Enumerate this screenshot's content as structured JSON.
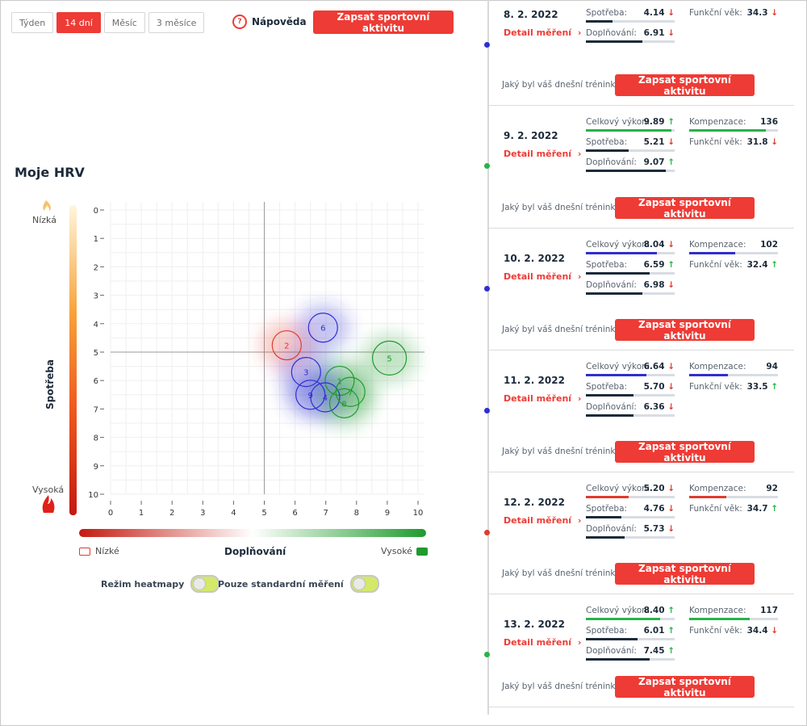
{
  "tabs": [
    {
      "label": "Týden",
      "active": false
    },
    {
      "label": "14 dní",
      "active": true
    },
    {
      "label": "Měsíc",
      "active": false
    },
    {
      "label": "3 měsíce",
      "active": false
    }
  ],
  "help": {
    "icon": "?",
    "label": "Nápověda"
  },
  "top_button": "Zapsat sportovní aktivitu",
  "chart_title": "Moje HRV",
  "chart": {
    "y_axis_title": "Spotřeba",
    "y_top_label": "Nízká",
    "y_bottom_label": "Vysoká",
    "x_axis_title": "Doplňování",
    "x_left_label": "Nízké",
    "x_right_label": "Vysoké",
    "colors": {
      "red": "#e03b2e",
      "green": "#1f9a2d",
      "blue": "#2e2fd0"
    }
  },
  "chart_data": {
    "type": "scatter",
    "xlabel": "Doplňování",
    "ylabel": "Spotřeba",
    "xlim": [
      0,
      10
    ],
    "ylim": [
      0,
      10
    ],
    "y_inverted": true,
    "x_ticks": [
      0,
      1,
      2,
      3,
      4,
      5,
      6,
      7,
      8,
      9,
      10
    ],
    "y_ticks": [
      0,
      1,
      2,
      3,
      4,
      5,
      6,
      7,
      8,
      9,
      10
    ],
    "reference_lines": {
      "x": 5,
      "y": 5
    },
    "points": [
      {
        "label": "1",
        "x": 7.45,
        "y": 6.01,
        "color": "green"
      },
      {
        "label": "2",
        "x": 5.73,
        "y": 4.76,
        "color": "red"
      },
      {
        "label": "3",
        "x": 6.36,
        "y": 5.7,
        "color": "blue"
      },
      {
        "label": "4",
        "x": 6.98,
        "y": 6.59,
        "color": "blue"
      },
      {
        "label": "5",
        "x": 9.07,
        "y": 5.21,
        "color": "green"
      },
      {
        "label": "6",
        "x": 6.91,
        "y": 4.14,
        "color": "blue"
      },
      {
        "label": "7",
        "x": 7.8,
        "y": 6.4,
        "color": "green"
      },
      {
        "label": "8",
        "x": 7.6,
        "y": 6.8,
        "color": "green"
      },
      {
        "label": "9",
        "x": 6.5,
        "y": 6.5,
        "color": "blue"
      }
    ]
  },
  "toggles": [
    {
      "label": "Režim heatmapy",
      "on": true
    },
    {
      "label": "Pouze standardní měření",
      "on": true
    }
  ],
  "entries": [
    {
      "date": "8. 2. 2022",
      "dot_color": "#2e2fd0",
      "detail": "Detail měření",
      "left_metrics": [
        {
          "label": "Spotřeba:",
          "value": "4.14",
          "trend": "down",
          "fill": 0.3,
          "bar_color": "#1c2a3a"
        },
        {
          "label": "Doplňování:",
          "value": "6.91",
          "trend": "down",
          "fill": 0.64,
          "bar_color": "#1c2a3a"
        }
      ],
      "right_metrics": [
        {
          "label": "Funkční věk:",
          "value": "34.3",
          "trend": "down",
          "bar": false
        }
      ],
      "question": "Jaký byl váš dnešní trénink?",
      "button": "Zapsat sportovní aktivitu"
    },
    {
      "date": "9. 2. 2022",
      "dot_color": "#27b34a",
      "detail": "Detail měření",
      "left_metrics": [
        {
          "label": "Celkový výkon:",
          "value": "9.89",
          "trend": "up",
          "fill": 0.96,
          "bar_color": "#27b34a"
        },
        {
          "label": "Spotřeba:",
          "value": "5.21",
          "trend": "down",
          "fill": 0.48,
          "bar_color": "#1c2a3a"
        },
        {
          "label": "Doplňování:",
          "value": "9.07",
          "trend": "up",
          "fill": 0.9,
          "bar_color": "#1c2a3a"
        }
      ],
      "right_metrics": [
        {
          "label": "Kompenzace:",
          "value": "136",
          "trend": "",
          "bar": true,
          "fill": 0.86,
          "bar_color": "#27b34a"
        },
        {
          "label": "Funkční věk:",
          "value": "31.8",
          "trend": "down",
          "bar": false
        }
      ],
      "question": "Jaký byl váš dnešní trénink?",
      "button": "Zapsat sportovní aktivitu"
    },
    {
      "date": "10. 2. 2022",
      "dot_color": "#2e2fd0",
      "detail": "Detail měření",
      "left_metrics": [
        {
          "label": "Celkový výkon:",
          "value": "8.04",
          "trend": "down",
          "fill": 0.8,
          "bar_color": "#2e2fd0"
        },
        {
          "label": "Spotřeba:",
          "value": "6.59",
          "trend": "up",
          "fill": 0.72,
          "bar_color": "#1c2a3a"
        },
        {
          "label": "Doplňování:",
          "value": "6.98",
          "trend": "down",
          "fill": 0.64,
          "bar_color": "#1c2a3a"
        }
      ],
      "right_metrics": [
        {
          "label": "Kompenzace:",
          "value": "102",
          "trend": "",
          "bar": true,
          "fill": 0.52,
          "bar_color": "#2e2fd0"
        },
        {
          "label": "Funkční věk:",
          "value": "32.4",
          "trend": "up",
          "bar": false
        }
      ],
      "question": "Jaký byl váš dnešní trénink?",
      "button": "Zapsat sportovní aktivitu"
    },
    {
      "date": "11. 2. 2022",
      "dot_color": "#2e2fd0",
      "detail": "Detail měření",
      "left_metrics": [
        {
          "label": "Celkový výkon:",
          "value": "6.64",
          "trend": "down",
          "fill": 0.68,
          "bar_color": "#2e2fd0"
        },
        {
          "label": "Spotřeba:",
          "value": "5.70",
          "trend": "down",
          "fill": 0.54,
          "bar_color": "#1c2a3a"
        },
        {
          "label": "Doplňování:",
          "value": "6.36",
          "trend": "down",
          "fill": 0.54,
          "bar_color": "#1c2a3a"
        }
      ],
      "right_metrics": [
        {
          "label": "Kompenzace:",
          "value": "94",
          "trend": "",
          "bar": true,
          "fill": 0.44,
          "bar_color": "#2e2fd0"
        },
        {
          "label": "Funkční věk:",
          "value": "33.5",
          "trend": "up",
          "bar": false
        }
      ],
      "question": "Jaký byl váš dnešní trénink?",
      "button": "Zapsat sportovní aktivitu"
    },
    {
      "date": "12. 2. 2022",
      "dot_color": "#e03b2e",
      "detail": "Detail měření",
      "left_metrics": [
        {
          "label": "Celkový výkon:",
          "value": "5.20",
          "trend": "down",
          "fill": 0.48,
          "bar_color": "#e03b2e"
        },
        {
          "label": "Spotřeba:",
          "value": "4.76",
          "trend": "down",
          "fill": 0.4,
          "bar_color": "#1c2a3a"
        },
        {
          "label": "Doplňování:",
          "value": "5.73",
          "trend": "down",
          "fill": 0.44,
          "bar_color": "#1c2a3a"
        }
      ],
      "right_metrics": [
        {
          "label": "Kompenzace:",
          "value": "92",
          "trend": "",
          "bar": true,
          "fill": 0.42,
          "bar_color": "#e03b2e"
        },
        {
          "label": "Funkční věk:",
          "value": "34.7",
          "trend": "up",
          "bar": false
        }
      ],
      "question": "Jaký byl váš dnešní trénink?",
      "button": "Zapsat sportovní aktivitu"
    },
    {
      "date": "13. 2. 2022",
      "dot_color": "#27b34a",
      "detail": "Detail měření",
      "left_metrics": [
        {
          "label": "Celkový výkon:",
          "value": "8.40",
          "trend": "up",
          "fill": 0.84,
          "bar_color": "#27b34a"
        },
        {
          "label": "Spotřeba:",
          "value": "6.01",
          "trend": "up",
          "fill": 0.58,
          "bar_color": "#1c2a3a"
        },
        {
          "label": "Doplňování:",
          "value": "7.45",
          "trend": "up",
          "fill": 0.72,
          "bar_color": "#1c2a3a"
        }
      ],
      "right_metrics": [
        {
          "label": "Kompenzace:",
          "value": "117",
          "trend": "",
          "bar": true,
          "fill": 0.68,
          "bar_color": "#27b34a"
        },
        {
          "label": "Funkční věk:",
          "value": "34.4",
          "trend": "down",
          "bar": false
        }
      ],
      "question": "Jaký byl váš dnešní trénink?",
      "button": "Zapsat sportovní aktivitu"
    }
  ]
}
